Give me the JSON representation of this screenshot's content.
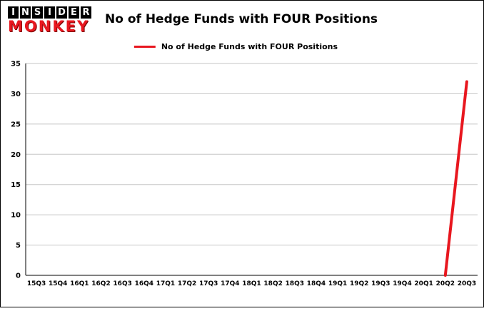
{
  "logo": {
    "top": "INSIDER",
    "bottom": "MONKEY"
  },
  "header": {
    "title": "No of Hedge Funds with FOUR Positions"
  },
  "chart_data": {
    "type": "line",
    "title": "No of Hedge Funds with FOUR Positions",
    "categories": [
      "15Q3",
      "15Q4",
      "16Q1",
      "16Q2",
      "16Q3",
      "16Q4",
      "17Q1",
      "17Q2",
      "17Q3",
      "17Q4",
      "18Q1",
      "18Q2",
      "18Q3",
      "18Q4",
      "19Q1",
      "19Q2",
      "19Q3",
      "19Q4",
      "20Q1",
      "20Q2",
      "20Q3"
    ],
    "series": [
      {
        "name": "No of Hedge Funds with FOUR Positions",
        "color": "#e8171f",
        "values": [
          null,
          null,
          null,
          null,
          null,
          null,
          null,
          null,
          null,
          null,
          null,
          null,
          null,
          null,
          null,
          null,
          null,
          null,
          null,
          0,
          32
        ]
      }
    ],
    "xlabel": "",
    "ylabel": "",
    "ylim": [
      0,
      35
    ],
    "yticks": [
      0,
      5,
      10,
      15,
      20,
      25,
      30,
      35
    ],
    "grid": true,
    "legend_position": "top-center",
    "axis_color": "#000000",
    "gridline_color": "#c6c6c6",
    "background_color": "#ffffff"
  }
}
